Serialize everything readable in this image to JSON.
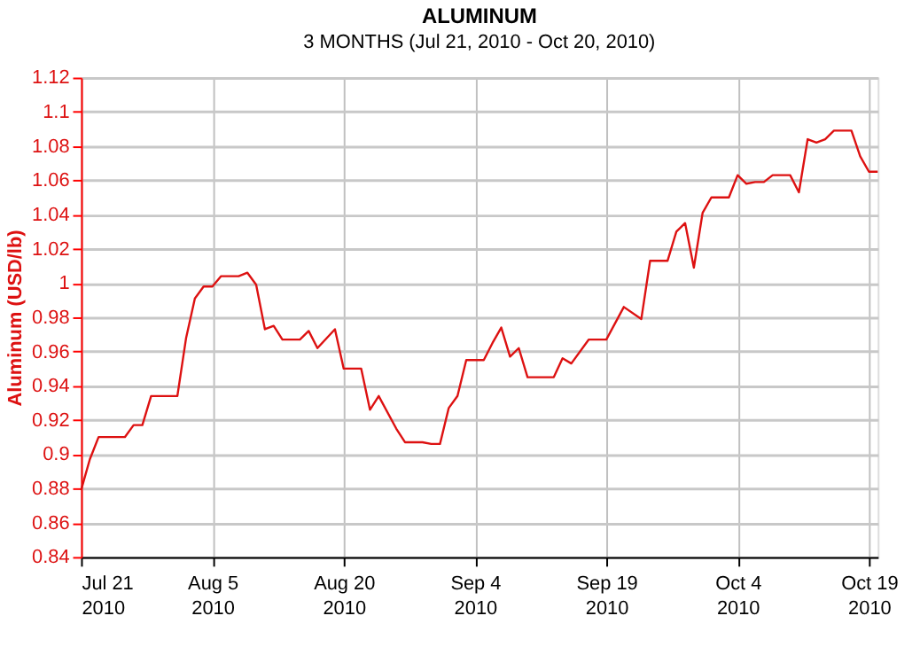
{
  "chart_data": {
    "type": "line",
    "title": "ALUMINUM",
    "subtitle": "3 MONTHS (Jul 21, 2010 - Oct 20, 2010)",
    "ylabel": "Aluminum (USD/lb)",
    "x": [
      "2010-07-21",
      "2010-07-22",
      "2010-07-23",
      "2010-07-26",
      "2010-07-27",
      "2010-07-28",
      "2010-07-29",
      "2010-08-01",
      "2010-08-02",
      "2010-08-03",
      "2010-08-04",
      "2010-08-05",
      "2010-08-06",
      "2010-08-08",
      "2010-08-09",
      "2010-08-10",
      "2010-08-11",
      "2010-08-12",
      "2010-08-13",
      "2010-08-15",
      "2010-08-16",
      "2010-08-17",
      "2010-08-19",
      "2010-08-20",
      "2010-08-22",
      "2010-08-23",
      "2010-08-24",
      "2010-08-26",
      "2010-08-27",
      "2010-08-29",
      "2010-08-30",
      "2010-08-31",
      "2010-09-01",
      "2010-09-02",
      "2010-09-03",
      "2010-09-05",
      "2010-09-06",
      "2010-09-07",
      "2010-09-08",
      "2010-09-09",
      "2010-09-10",
      "2010-09-13",
      "2010-09-14",
      "2010-09-15",
      "2010-09-17",
      "2010-09-19",
      "2010-09-21",
      "2010-09-23",
      "2010-09-24",
      "2010-09-26",
      "2010-09-27",
      "2010-09-28",
      "2010-09-29",
      "2010-09-30",
      "2010-10-01",
      "2010-10-03",
      "2010-10-04",
      "2010-10-05",
      "2010-10-06",
      "2010-10-07",
      "2010-10-08",
      "2010-10-10",
      "2010-10-11",
      "2010-10-12",
      "2010-10-13",
      "2010-10-14",
      "2010-10-15",
      "2010-10-17",
      "2010-10-18",
      "2010-10-19",
      "2010-10-20"
    ],
    "series": [
      {
        "color": "#dd1111",
        "values": [
          0.879,
          0.897,
          0.91,
          0.91,
          0.917,
          0.917,
          0.934,
          0.934,
          0.968,
          0.991,
          0.998,
          0.998,
          1.004,
          1.004,
          1.006,
          0.999,
          0.973,
          0.975,
          0.967,
          0.967,
          0.972,
          0.962,
          0.973,
          0.95,
          0.95,
          0.926,
          0.934,
          0.915,
          0.907,
          0.907,
          0.906,
          0.906,
          0.927,
          0.934,
          0.955,
          0.955,
          0.965,
          0.974,
          0.957,
          0.962,
          0.945,
          0.945,
          0.956,
          0.953,
          0.967,
          0.967,
          0.986,
          0.979,
          1.013,
          1.013,
          1.03,
          1.035,
          1.009,
          1.041,
          1.05,
          1.05,
          1.063,
          1.058,
          1.059,
          1.059,
          1.063,
          1.063,
          1.053,
          1.084,
          1.082,
          1.084,
          1.089,
          1.089,
          1.074,
          1.065,
          1.065
        ]
      }
    ],
    "xlim": [
      "2010-07-21",
      "2010-10-20"
    ],
    "xticks": [
      {
        "value": "2010-07-21",
        "label": "Jul 21 2010"
      },
      {
        "value": "2010-08-05",
        "label": "Aug 5 2010"
      },
      {
        "value": "2010-08-20",
        "label": "Aug 20 2010"
      },
      {
        "value": "2010-09-04",
        "label": "Sep 4 2010"
      },
      {
        "value": "2010-09-19",
        "label": "Sep 19 2010"
      },
      {
        "value": "2010-10-04",
        "label": "Oct 4 2010"
      },
      {
        "value": "2010-10-19",
        "label": "Oct 19 2010"
      }
    ],
    "ylim": [
      0.84,
      1.12
    ],
    "yticks": [
      0.84,
      0.86,
      0.88,
      0.9,
      0.92,
      0.94,
      0.96,
      0.98,
      1,
      1.02,
      1.04,
      1.06,
      1.08,
      1.1,
      1.12
    ],
    "grid": true,
    "legend": false,
    "marker": "none",
    "line_style": "solid"
  }
}
